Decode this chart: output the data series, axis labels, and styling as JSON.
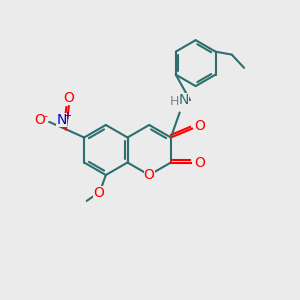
{
  "background_color": "#ebebeb",
  "bond_color": "#2d6e6e",
  "bond_width": 1.5,
  "atom_colors": {
    "O": "#ff0000",
    "N_blue": "#0000cc",
    "N_teal": "#2d6e6e",
    "H": "#808080"
  },
  "font_size": 10,
  "font_size_small": 8
}
